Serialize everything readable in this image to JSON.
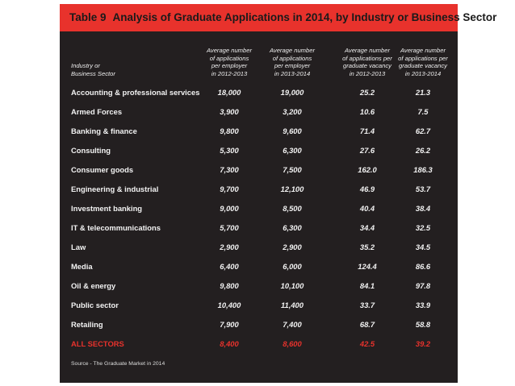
{
  "title": {
    "label": "Table 9",
    "text": "Analysis of Graduate Applications in 2014, by Industry or Business Sector"
  },
  "headers": {
    "sector": "Industry or\nBusiness Sector",
    "col1": "Average number\nof applications\nper employer\nin 2012-2013",
    "col2": "Average number\nof applications\nper employer\nin 2013-2014",
    "col3": "Average number\nof applications per\ngraduate vacancy\nin 2012-2013",
    "col4": "Average number\nof applications per\ngraduate vacancy\nin 2013-2014"
  },
  "rows": [
    {
      "sector": "Accounting & professional services",
      "c1": "18,000",
      "c2": "19,000",
      "c3": "25.2",
      "c4": "21.3"
    },
    {
      "sector": "Armed Forces",
      "c1": "3,900",
      "c2": "3,200",
      "c3": "10.6",
      "c4": "7.5"
    },
    {
      "sector": "Banking & finance",
      "c1": "9,800",
      "c2": "9,600",
      "c3": "71.4",
      "c4": "62.7"
    },
    {
      "sector": "Consulting",
      "c1": "5,300",
      "c2": "6,300",
      "c3": "27.6",
      "c4": "26.2"
    },
    {
      "sector": "Consumer goods",
      "c1": "7,300",
      "c2": "7,500",
      "c3": "162.0",
      "c4": "186.3"
    },
    {
      "sector": "Engineering & industrial",
      "c1": "9,700",
      "c2": "12,100",
      "c3": "46.9",
      "c4": "53.7"
    },
    {
      "sector": "Investment banking",
      "c1": "9,000",
      "c2": "8,500",
      "c3": "40.4",
      "c4": "38.4"
    },
    {
      "sector": "IT & telecommunications",
      "c1": "5,700",
      "c2": "6,300",
      "c3": "34.4",
      "c4": "32.5"
    },
    {
      "sector": "Law",
      "c1": "2,900",
      "c2": "2,900",
      "c3": "35.2",
      "c4": "34.5"
    },
    {
      "sector": "Media",
      "c1": "6,400",
      "c2": "6,000",
      "c3": "124.4",
      "c4": "86.6"
    },
    {
      "sector": "Oil & energy",
      "c1": "9,800",
      "c2": "10,100",
      "c3": "84.1",
      "c4": "97.8"
    },
    {
      "sector": "Public sector",
      "c1": "10,400",
      "c2": "11,400",
      "c3": "33.7",
      "c4": "33.9"
    },
    {
      "sector": "Retailing",
      "c1": "7,900",
      "c2": "7,400",
      "c3": "68.7",
      "c4": "58.8"
    }
  ],
  "total": {
    "sector": "ALL SECTORS",
    "c1": "8,400",
    "c2": "8,600",
    "c3": "42.5",
    "c4": "39.2"
  },
  "source": "Source - The Graduate Market in 2014",
  "colors": {
    "accent": "#e8322c",
    "panel": "#231f20",
    "text": "#f2f2f2"
  }
}
